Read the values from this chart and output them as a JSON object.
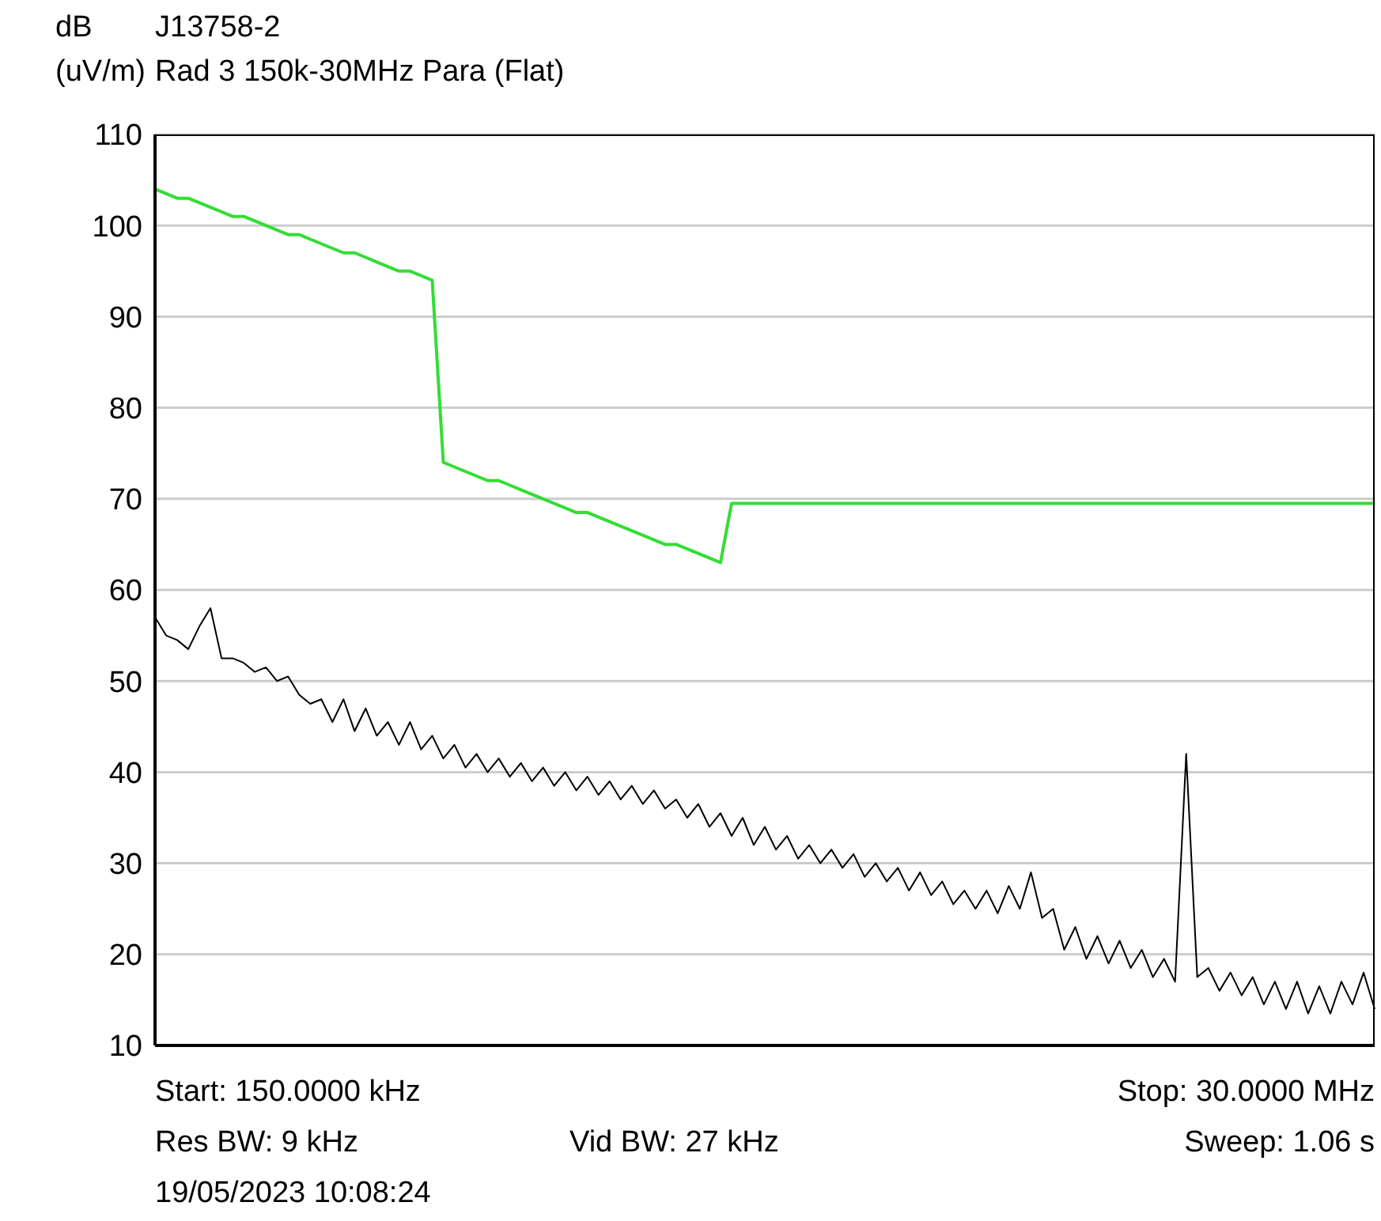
{
  "chart_data": {
    "type": "line",
    "title": "J13758-2",
    "subtitle": "Rad 3 150k-30MHz Para (Flat)",
    "ylabel": "dB (uV/m)",
    "annotations": [
      "Start: 150.0000 kHz",
      "Stop: 30.0000 MHz",
      "Res BW: 9 kHz",
      "Vid BW: 27 kHz",
      "Sweep: 1.06 s",
      "19/05/2023 10:08:24"
    ],
    "categories": [
      null,
      null,
      null,
      null,
      null,
      null,
      null,
      null,
      null,
      null,
      null,
      null,
      null,
      null,
      null,
      null,
      null,
      null,
      null,
      null,
      null,
      null,
      null,
      null,
      null,
      null,
      null,
      null,
      null,
      null,
      null,
      null,
      null,
      null,
      null,
      null,
      null,
      null,
      null,
      null,
      null,
      null,
      null,
      null,
      null,
      null,
      null,
      null,
      null,
      null,
      null,
      null,
      null,
      null,
      null,
      null,
      null,
      null,
      null,
      null,
      null,
      null,
      null,
      null,
      null,
      null,
      null,
      null,
      null,
      null,
      null,
      null,
      null,
      null,
      null,
      null,
      null,
      null,
      null,
      null,
      null,
      null,
      null,
      null,
      null,
      null,
      null,
      null,
      null,
      null,
      null,
      null,
      null,
      null,
      null,
      null,
      null,
      null,
      null,
      null,
      null,
      null,
      null,
      null,
      null,
      null,
      null,
      null,
      null,
      null,
      null
    ],
    "ylim": [
      10,
      110
    ],
    "yticks": [
      10,
      20,
      30,
      40,
      50,
      60,
      70,
      80,
      90,
      100,
      110
    ],
    "tick_labels": "y",
    "grid": "y",
    "legend": false,
    "marker": "none",
    "line_style": "solid",
    "series": [
      {
        "color": "#33dd33",
        "values": [
          104,
          103.5,
          103,
          103,
          102.5,
          102,
          101.5,
          101,
          101,
          100.5,
          100,
          99.5,
          99,
          99,
          98.5,
          98,
          97.5,
          97,
          97,
          96.5,
          96,
          95.5,
          95,
          95,
          94.5,
          94,
          74,
          73.5,
          73,
          72.5,
          72,
          72,
          71.5,
          71,
          70.5,
          70,
          69.5,
          69,
          68.5,
          68.5,
          68,
          67.5,
          67,
          66.5,
          66,
          65.5,
          65,
          65,
          64.5,
          64,
          63.5,
          63,
          69.5,
          69.5,
          69.5,
          69.5,
          69.5,
          69.5,
          69.5,
          69.5,
          69.5,
          69.5,
          69.5,
          69.5,
          69.5,
          69.5,
          69.5,
          69.5,
          69.5,
          69.5,
          69.5,
          69.5,
          69.5,
          69.5,
          69.5,
          69.5,
          69.5,
          69.5,
          69.5,
          69.5,
          69.5,
          69.5,
          69.5,
          69.5,
          69.5,
          69.5,
          69.5,
          69.5,
          69.5,
          69.5,
          69.5,
          69.5,
          69.5,
          69.5,
          69.5,
          69.5,
          69.5,
          69.5,
          69.5,
          69.5,
          69.5,
          69.5,
          69.5,
          69.5,
          69.5,
          69.5,
          69.5,
          69.5,
          69.5,
          69.5,
          69.5
        ]
      },
      {
        "color": "#000000",
        "values": [
          57,
          55,
          54.5,
          53.5,
          56,
          58,
          52.5,
          52.5,
          52,
          51,
          51.5,
          50,
          50.5,
          48.5,
          47.5,
          48,
          45.5,
          48,
          44.5,
          47,
          44,
          45.5,
          43,
          45.5,
          42.5,
          44,
          41.5,
          43,
          40.5,
          42,
          40,
          41.5,
          39.5,
          41,
          39,
          40.5,
          38.5,
          40,
          38,
          39.5,
          37.5,
          39,
          37,
          38.5,
          36.5,
          38,
          36,
          37,
          35,
          36.5,
          34,
          35.5,
          33,
          35,
          32,
          34,
          31.5,
          33,
          30.5,
          32,
          30,
          31.5,
          29.5,
          31,
          28.5,
          30,
          28,
          29.5,
          27,
          29,
          26.5,
          28,
          25.5,
          27,
          25,
          27,
          24.5,
          27.5,
          25,
          29,
          24,
          25,
          20.5,
          23,
          19.5,
          22,
          19,
          21.5,
          18.5,
          20.5,
          17.5,
          19.5,
          17,
          42,
          17.5,
          18.5,
          16,
          18,
          15.5,
          17.5,
          14.5,
          17,
          14,
          17,
          13.5,
          16.5,
          13.5,
          17,
          14.5,
          18,
          14
        ]
      }
    ]
  }
}
